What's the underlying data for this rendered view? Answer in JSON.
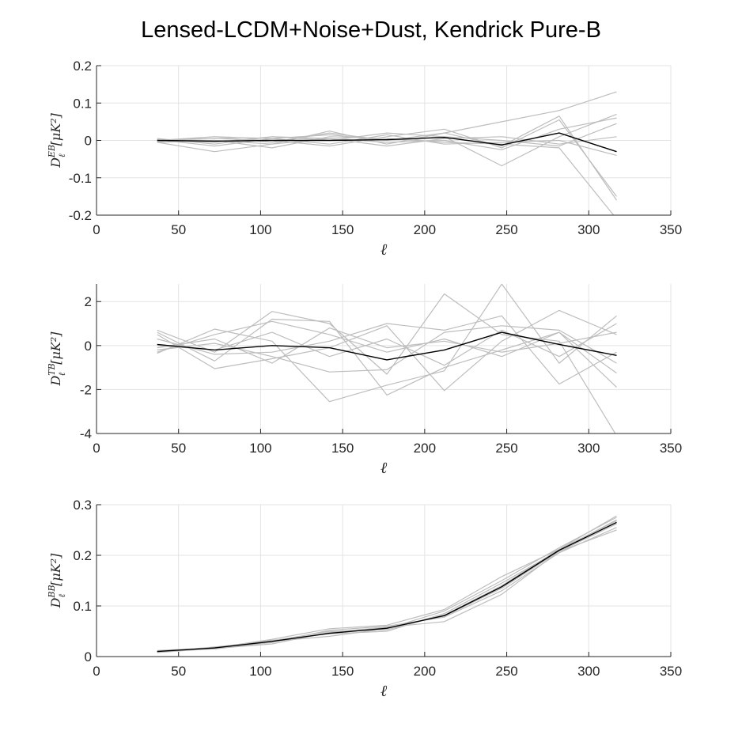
{
  "title": "Lensed-LCDM+Noise+Dust, Kendrick Pure-B",
  "colors": {
    "sims": "#bdbdbd",
    "mean": "#000000",
    "grid": "#e3e3e3",
    "axis": "#262626"
  },
  "chart_data": [
    {
      "type": "line",
      "ylabel": "D_ℓ^{EB}[μK²]",
      "xlabel": "ℓ",
      "xlim": [
        0,
        350
      ],
      "ylim": [
        -0.2,
        0.2
      ],
      "xticks": [
        0,
        50,
        100,
        150,
        200,
        250,
        300,
        350
      ],
      "yticks": [
        -0.2,
        -0.1,
        0,
        0.1,
        0.2
      ],
      "ytick_labels": [
        "-0.2",
        "-0.1",
        "0",
        "0.1",
        "0.2"
      ],
      "grid": true,
      "x": [
        37,
        72,
        107,
        142,
        177,
        212,
        247,
        282,
        317
      ],
      "series": [
        {
          "kind": "sim",
          "values": [
            0.0,
            0.01,
            0.005,
            0.015,
            0.0,
            0.02,
            0.05,
            0.08,
            0.13
          ]
        },
        {
          "kind": "sim",
          "values": [
            -0.005,
            -0.03,
            -0.01,
            0.025,
            -0.01,
            0.02,
            -0.015,
            0.065,
            -0.16
          ]
        },
        {
          "kind": "sim",
          "values": [
            0.005,
            -0.01,
            0.01,
            0.0,
            0.02,
            0.01,
            -0.068,
            0.01,
            0.07
          ]
        },
        {
          "kind": "sim",
          "values": [
            -0.005,
            0.0,
            -0.02,
            0.01,
            0.005,
            -0.005,
            -0.01,
            -0.02,
            -0.21
          ]
        },
        {
          "kind": "sim",
          "values": [
            0.0,
            0.005,
            0.0,
            -0.015,
            0.01,
            0.03,
            -0.02,
            0.055,
            -0.15
          ]
        },
        {
          "kind": "sim",
          "values": [
            0.0,
            -0.005,
            0.01,
            0.005,
            -0.005,
            0.0,
            -0.025,
            0.03,
            0.06
          ]
        },
        {
          "kind": "sim",
          "values": [
            -0.003,
            0.01,
            -0.005,
            0.02,
            0.0,
            0.01,
            0.0,
            -0.015,
            0.045
          ]
        },
        {
          "kind": "sim",
          "values": [
            0.002,
            -0.015,
            0.005,
            -0.01,
            0.015,
            -0.01,
            -0.005,
            0.0,
            -0.04
          ]
        },
        {
          "kind": "sim",
          "values": [
            0.0,
            0.0,
            -0.01,
            0.005,
            -0.015,
            0.005,
            0.01,
            -0.01,
            0.01
          ]
        },
        {
          "kind": "mean",
          "values": [
            0.0,
            -0.002,
            0.0,
            0.0,
            0.002,
            0.008,
            -0.012,
            0.02,
            -0.03
          ]
        }
      ]
    },
    {
      "type": "line",
      "ylabel": "D_ℓ^{TB}[μK²]",
      "xlabel": "ℓ",
      "xlim": [
        0,
        350
      ],
      "ylim": [
        -4,
        2.8
      ],
      "xticks": [
        0,
        50,
        100,
        150,
        200,
        250,
        300,
        350
      ],
      "yticks": [
        -4,
        -2,
        0,
        2
      ],
      "ytick_labels": [
        "-4",
        "-2",
        "0",
        "2"
      ],
      "grid": true,
      "x": [
        37,
        72,
        107,
        142,
        177,
        212,
        247,
        282,
        317
      ],
      "series": [
        {
          "kind": "sim",
          "values": [
            0.7,
            -0.3,
            1.55,
            1.0,
            -1.3,
            2.35,
            0.5,
            0.2,
            -4.1
          ]
        },
        {
          "kind": "sim",
          "values": [
            -0.35,
            0.75,
            0.2,
            -2.55,
            -1.8,
            -1.15,
            2.8,
            -0.8,
            1.35
          ]
        },
        {
          "kind": "sim",
          "values": [
            0.6,
            -0.7,
            1.2,
            1.1,
            -2.25,
            -1.0,
            -0.2,
            0.6,
            -1.9
          ]
        },
        {
          "kind": "sim",
          "values": [
            -0.2,
            0.1,
            -0.5,
            -1.2,
            -1.1,
            0.6,
            0.9,
            0.7,
            -0.8
          ]
        },
        {
          "kind": "sim",
          "values": [
            0.3,
            -0.4,
            -0.3,
            0.2,
            1.0,
            0.7,
            1.35,
            -1.75,
            -0.3
          ]
        },
        {
          "kind": "sim",
          "values": [
            0.5,
            -1.05,
            -0.6,
            -0.1,
            0.9,
            -2.05,
            0.2,
            1.6,
            0.5
          ]
        },
        {
          "kind": "sim",
          "values": [
            -0.3,
            0.5,
            1.1,
            0.5,
            -0.3,
            0.3,
            -0.5,
            0.6,
            -1.25
          ]
        },
        {
          "kind": "sim",
          "values": [
            0.0,
            -0.2,
            0.6,
            -0.5,
            0.3,
            -0.9,
            0.7,
            -0.5,
            1.0
          ]
        },
        {
          "kind": "sim",
          "values": [
            -0.1,
            0.3,
            -0.8,
            0.8,
            -0.1,
            0.2,
            -0.3,
            0.1,
            0.6
          ]
        },
        {
          "kind": "mean",
          "values": [
            0.05,
            -0.2,
            0.0,
            -0.1,
            -0.65,
            -0.2,
            0.6,
            0.05,
            -0.45
          ]
        }
      ]
    },
    {
      "type": "line",
      "ylabel": "D_ℓ^{BB}[μK²]",
      "xlabel": "ℓ",
      "xlim": [
        0,
        350
      ],
      "ylim": [
        0,
        0.3
      ],
      "xticks": [
        0,
        50,
        100,
        150,
        200,
        250,
        300,
        350
      ],
      "yticks": [
        0,
        0.1,
        0.2,
        0.3
      ],
      "ytick_labels": [
        "0",
        "0.1",
        "0.2",
        "0.3"
      ],
      "grid": true,
      "x": [
        37,
        72,
        107,
        142,
        177,
        212,
        247,
        282,
        317
      ],
      "series": [
        {
          "kind": "sim",
          "values": [
            0.012,
            0.017,
            0.034,
            0.055,
            0.062,
            0.093,
            0.158,
            0.212,
            0.278
          ]
        },
        {
          "kind": "sim",
          "values": [
            0.008,
            0.016,
            0.025,
            0.048,
            0.058,
            0.069,
            0.123,
            0.208,
            0.25
          ]
        },
        {
          "kind": "sim",
          "values": [
            0.01,
            0.018,
            0.032,
            0.045,
            0.05,
            0.085,
            0.145,
            0.21,
            0.27
          ]
        },
        {
          "kind": "sim",
          "values": [
            0.011,
            0.015,
            0.028,
            0.052,
            0.06,
            0.078,
            0.13,
            0.205,
            0.255
          ]
        },
        {
          "kind": "sim",
          "values": [
            0.009,
            0.019,
            0.03,
            0.04,
            0.055,
            0.09,
            0.15,
            0.215,
            0.275
          ]
        },
        {
          "kind": "sim",
          "values": [
            0.01,
            0.017,
            0.029,
            0.046,
            0.057,
            0.08,
            0.135,
            0.208,
            0.262
          ]
        },
        {
          "kind": "sim",
          "values": [
            0.008,
            0.018,
            0.031,
            0.05,
            0.053,
            0.082,
            0.14,
            0.212,
            0.268
          ]
        },
        {
          "kind": "mean",
          "values": [
            0.01,
            0.017,
            0.03,
            0.046,
            0.056,
            0.081,
            0.138,
            0.21,
            0.265
          ]
        }
      ]
    }
  ]
}
